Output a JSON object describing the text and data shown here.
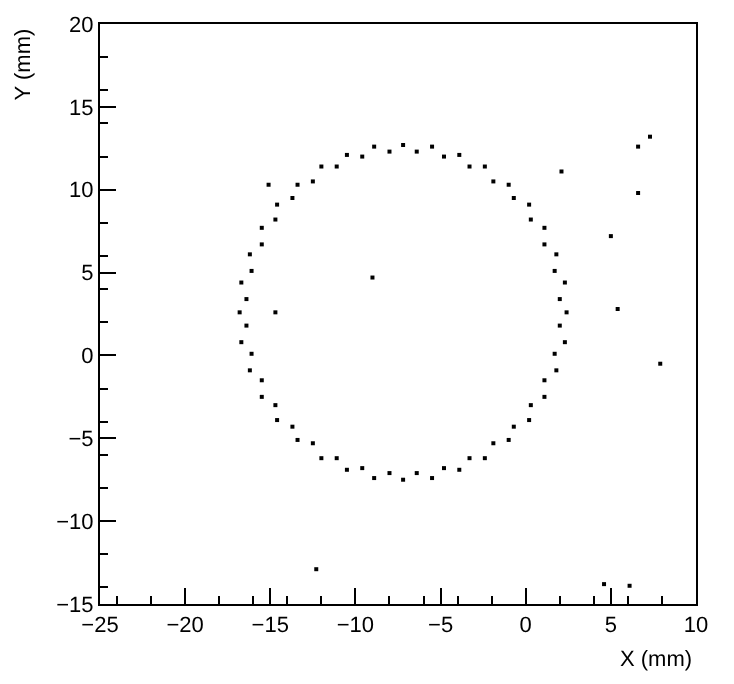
{
  "chart_data": {
    "type": "scatter",
    "xlabel": "X (mm)",
    "ylabel": "Y (mm)",
    "xlim": [
      -25,
      10
    ],
    "xticks": [
      -25,
      -20,
      -15,
      -10,
      -5,
      0,
      5,
      10
    ],
    "ylim": [
      -15,
      20
    ],
    "yticks": [
      -15,
      -10,
      -5,
      0,
      5,
      10,
      15,
      20
    ],
    "marker": "square",
    "series": [
      {
        "color": "#000000",
        "x": [
          2.4,
          2.3,
          1.8,
          1.1,
          0.2,
          -1.0,
          -2.4,
          -3.9,
          -5.5,
          -7.2,
          -8.9,
          -10.5,
          -12.0,
          -13.4,
          -14.6,
          -15.5,
          -16.2,
          -16.7,
          -16.8,
          -16.7,
          -16.2,
          -15.5,
          -14.6,
          -13.4,
          -12.0,
          -10.5,
          -8.9,
          -7.2,
          -5.5,
          -3.9,
          -2.4,
          -1.0,
          0.2,
          1.1,
          1.8,
          2.3,
          2.0,
          1.7,
          1.1,
          0.3,
          -0.7,
          -1.9,
          -3.3,
          -4.8,
          -6.4,
          -8.0,
          -9.6,
          -11.1,
          -12.5,
          -13.7,
          -14.7,
          -15.5,
          -16.1,
          -16.4,
          -16.4,
          -16.1,
          -15.5,
          -14.7,
          -13.7,
          -12.5,
          -11.1,
          -9.6,
          -8.0,
          -6.4,
          -4.8,
          -3.3,
          -1.9,
          -0.7,
          0.3,
          1.1,
          1.7,
          2.0,
          6.6,
          7.3,
          2.1,
          6.6,
          5.0,
          5.4,
          7.9,
          4.6,
          6.1,
          -9.0,
          -14.7,
          -12.3,
          -15.1
        ],
        "values": [
          2.6,
          4.4,
          6.1,
          7.7,
          9.1,
          10.3,
          11.4,
          12.1,
          12.6,
          12.7,
          12.6,
          12.1,
          11.4,
          10.3,
          9.1,
          7.7,
          6.1,
          4.4,
          2.6,
          0.8,
          -0.9,
          -2.5,
          -3.9,
          -5.1,
          -6.2,
          -6.9,
          -7.4,
          -7.5,
          -7.4,
          -6.9,
          -6.2,
          -5.1,
          -3.9,
          -2.5,
          -0.9,
          0.8,
          3.4,
          5.1,
          6.7,
          8.2,
          9.5,
          10.5,
          11.4,
          12.0,
          12.3,
          12.3,
          12.0,
          11.4,
          10.5,
          9.5,
          8.2,
          6.7,
          5.1,
          3.4,
          1.8,
          0.1,
          -1.5,
          -3.0,
          -4.3,
          -5.3,
          -6.2,
          -6.8,
          -7.1,
          -7.1,
          -6.8,
          -6.2,
          -5.3,
          -4.3,
          -3.0,
          -1.5,
          0.1,
          1.8,
          12.6,
          13.2,
          11.1,
          9.8,
          7.2,
          2.8,
          -0.5,
          -13.8,
          -13.9,
          4.7,
          2.6,
          -12.9,
          10.3
        ]
      }
    ]
  }
}
